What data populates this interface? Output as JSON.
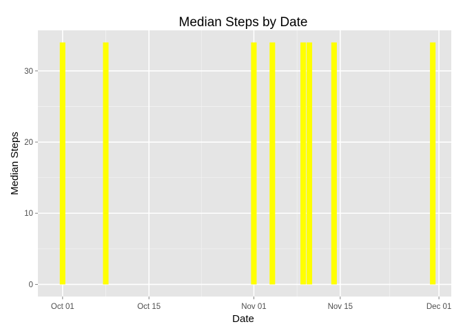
{
  "chart_data": {
    "type": "bar",
    "title": "Median Steps by Date",
    "xlabel": "Date",
    "ylabel": "Median Steps",
    "x": [
      "2012-10-01",
      "2012-10-08",
      "2012-11-01",
      "2012-11-04",
      "2012-11-09",
      "2012-11-10",
      "2012-11-14",
      "2012-11-30"
    ],
    "values": [
      34,
      34,
      34,
      34,
      34,
      34,
      34,
      34
    ],
    "xlim": [
      "2012-09-27",
      "2012-12-03"
    ],
    "ylim": [
      -1.7,
      35.7
    ],
    "x_ticks": [
      {
        "date": "2012-10-01",
        "label": "Oct 01"
      },
      {
        "date": "2012-10-15",
        "label": "Oct 15"
      },
      {
        "date": "2012-11-01",
        "label": "Nov 01"
      },
      {
        "date": "2012-11-15",
        "label": "Nov 15"
      },
      {
        "date": "2012-12-01",
        "label": "Dec 01"
      }
    ],
    "y_ticks": [
      {
        "value": 0,
        "label": "0"
      },
      {
        "value": 10,
        "label": "10"
      },
      {
        "value": 20,
        "label": "20"
      },
      {
        "value": 30,
        "label": "30"
      }
    ],
    "grid": true,
    "colors": {
      "bar": "#ffff00",
      "panel": "#e5e5e5",
      "grid_major": "#ffffff",
      "grid_minor": "#f2f2f2",
      "tick_text": "#4d4d4d",
      "tick_mark": "#7f7f7f"
    }
  }
}
